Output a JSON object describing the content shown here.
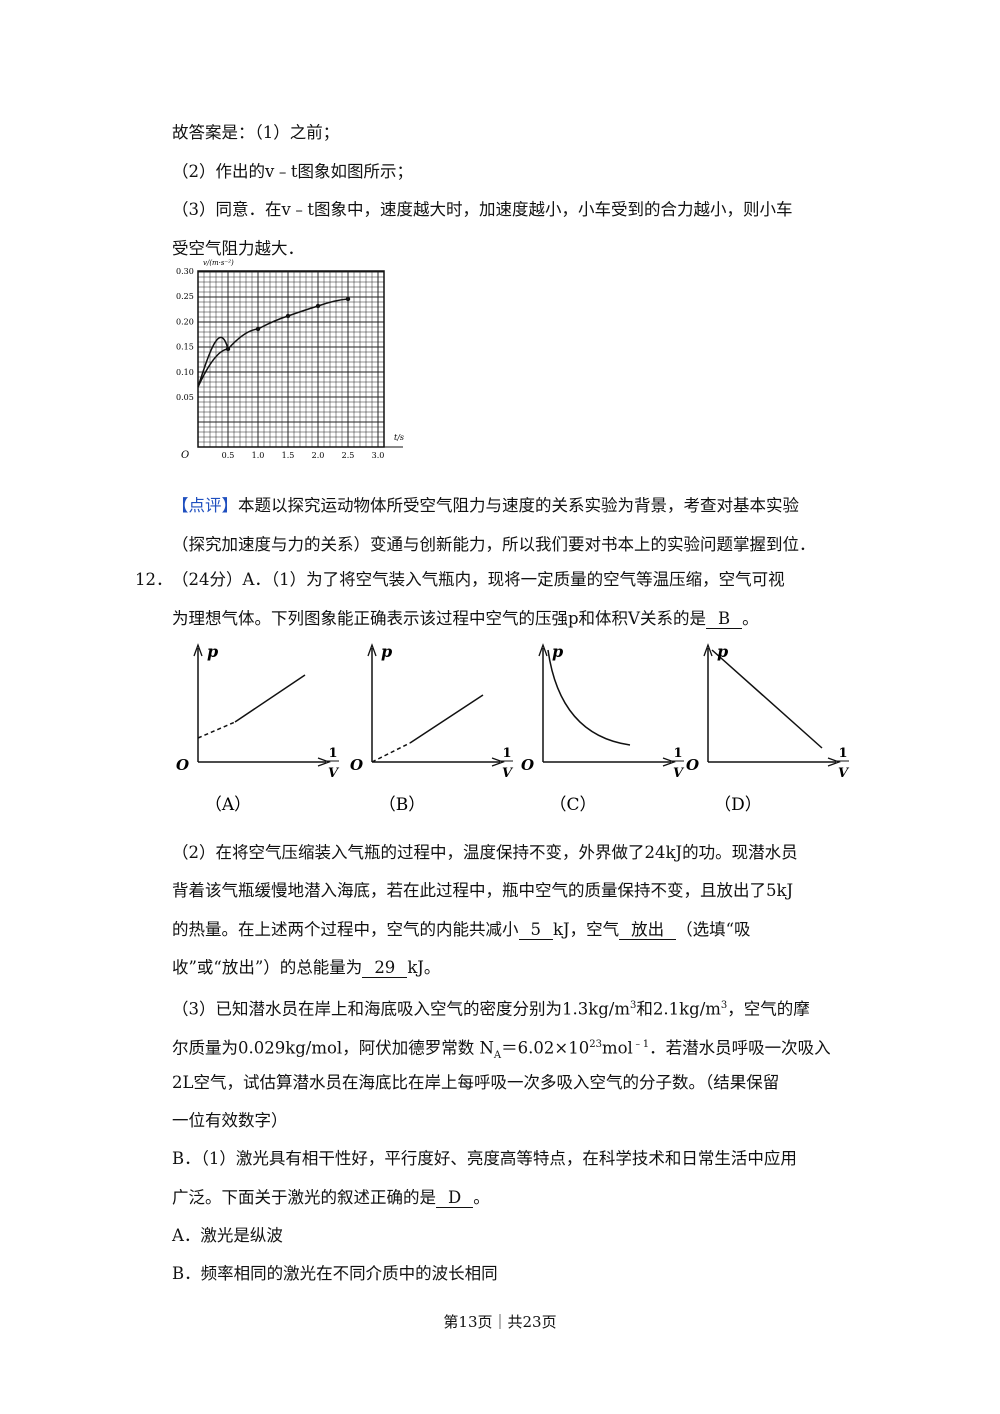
{
  "answer": {
    "lines": [
      [
        "故答案是：（1）之前；"
      ],
      [
        "（2）作出的v﹣t图象如图所示；"
      ],
      [
        "（3）同意．在v﹣t图象中，速度越大时，加速度越小，小车受到的合力越小，则小车"
      ],
      [
        "受空气阻力越大．"
      ]
    ]
  },
  "vt_graph": {
    "y_label": "v/(m·s⁻²)",
    "x_label": "t/s",
    "origin": "O",
    "y_tick_labels": [
      "0.30",
      "0.25",
      "0.20",
      "0.15",
      "0.10",
      "0.05"
    ],
    "x_tick_labels": [
      "0.5",
      "1.0",
      "1.5",
      "2.0",
      "2.5",
      "3.0"
    ]
  },
  "comment": {
    "lines": [
      [
        {
          "tag": "【点评】"
        },
        "本题以探究运动物体所受空气阻力与速度的关系实验为背景，考查对基本实验"
      ],
      [
        "（探究加速度与力的关系）变通与创新能力，所以我们要对书本上的实验问题掌握到位．"
      ]
    ]
  },
  "q12": {
    "number": "12．",
    "lines": [
      [
        "（24分）A．（1）为了将空气装入气瓶内，现将一定质量的空气等温压缩，空气可视"
      ],
      [
        "为理想气体。下列图象能正确表示该过程中空气的压强p和体积V关系的是",
        {
          "blank": "B"
        },
        "。"
      ]
    ]
  },
  "pv_figures": {
    "y_axis": "p",
    "x_axis_num": "1",
    "x_axis_den": "V",
    "origin": "O",
    "labels": [
      "（A）",
      "（B）",
      "（C）",
      "（D）"
    ]
  },
  "q12_cont": {
    "lines": [
      [
        "（2）在将空气压缩装入气瓶的过程中，温度保持不变，外界做了24kJ的功。现潜水员"
      ],
      [
        "背着该气瓶缓慢地潜入海底，若在此过程中，瓶中空气的质量保持不变，且放出了5kJ"
      ],
      [
        "的热量。在上述两个过程中，空气的内能共减小",
        {
          "blank": "5"
        },
        "kJ，空气",
        {
          "blank": "放出"
        },
        "（选填“吸"
      ],
      [
        "收”或“放出”）的总能量为",
        {
          "blank": "29"
        },
        "kJ。"
      ],
      [
        "（3）已知潜水员在岸上和海底吸入空气的密度分别为1.3kg/m",
        {
          "sup": "3"
        },
        "和2.1kg/m",
        {
          "sup": "3"
        },
        "，空气的摩"
      ],
      [
        "尔质量为0.029kg/mol，阿伏加德罗常数 N",
        {
          "sub": "A"
        },
        "＝6.02×10",
        {
          "sup": "23"
        },
        "mol",
        {
          "sup": "﹣1"
        },
        "．若潜水员呼吸一次吸入"
      ],
      [
        "2L空气，试估算潜水员在海底比在岸上每呼吸一次多吸入空气的分子数。（结果保留"
      ],
      [
        "一位有效数字）"
      ],
      [
        "B．（1）激光具有相干性好，平行度好、亮度高等特点，在科学技术和日常生活中应用"
      ],
      [
        "广泛。下面关于激光的叙述正确的是",
        {
          "blank": "D"
        },
        "。"
      ],
      [
        "A．激光是纵波"
      ],
      [
        "B．频率相同的激光在不同介质中的波长相同"
      ]
    ]
  },
  "footer": "第13页｜共23页"
}
